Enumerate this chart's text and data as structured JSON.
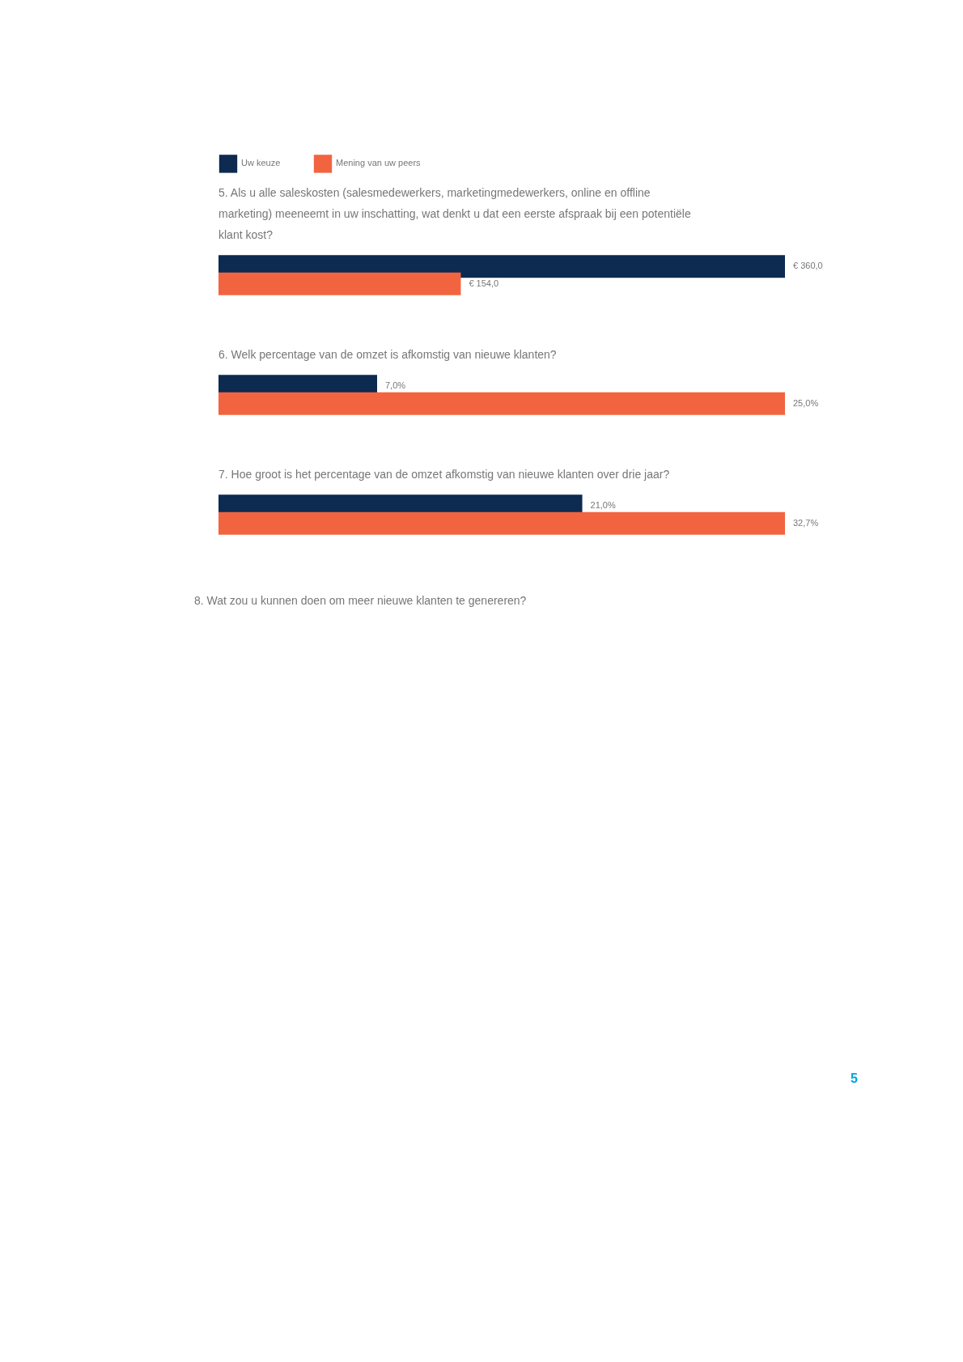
{
  "chart_data": [
    {
      "type": "bar",
      "orientation": "horizontal",
      "title": "5.   Als u alle saleskosten (salesmedewerkers, marketingmedewerkers, online en offline marketing) meeneemt in uw inschatting, wat denkt u dat een eerste afspraak bij een potentiële klant kost?",
      "categories": [
        null
      ],
      "legend": "top",
      "series": [
        {
          "name": "Uw keuze",
          "color": "#0d2a50",
          "values": [
            360.0
          ],
          "value_labels": [
            "€ 360,0"
          ]
        },
        {
          "name": "Mening van uw peers",
          "color": "#f26440",
          "values": [
            154.0
          ],
          "value_labels": [
            "€ 154,0"
          ]
        }
      ]
    },
    {
      "type": "bar",
      "orientation": "horizontal",
      "title": "6.   Welk percentage van de omzet is afkomstig van nieuwe klanten?",
      "categories": [
        null
      ],
      "legend": "top",
      "series": [
        {
          "name": "Uw keuze",
          "color": "#0d2a50",
          "values": [
            7.0
          ],
          "value_labels": [
            "7,0%"
          ]
        },
        {
          "name": "Mening van uw peers",
          "color": "#f26440",
          "values": [
            25.0
          ],
          "value_labels": [
            "25,0%"
          ]
        }
      ]
    },
    {
      "type": "bar",
      "orientation": "horizontal",
      "title": "7.   Hoe groot is het percentage van de omzet afkomstig van nieuwe klanten over drie jaar?",
      "categories": [
        null
      ],
      "legend": "top",
      "series": [
        {
          "name": "Uw keuze",
          "color": "#0d2a50",
          "values": [
            21.0
          ],
          "value_labels": [
            "21,0%"
          ]
        },
        {
          "name": "Mening van uw peers",
          "color": "#f26440",
          "values": [
            32.7
          ],
          "value_labels": [
            "32,7%"
          ]
        }
      ],
      "annotations": [
        "8.   Wat zou u kunnen doen om meer nieuwe klanten te genereren?",
        "5"
      ]
    }
  ]
}
